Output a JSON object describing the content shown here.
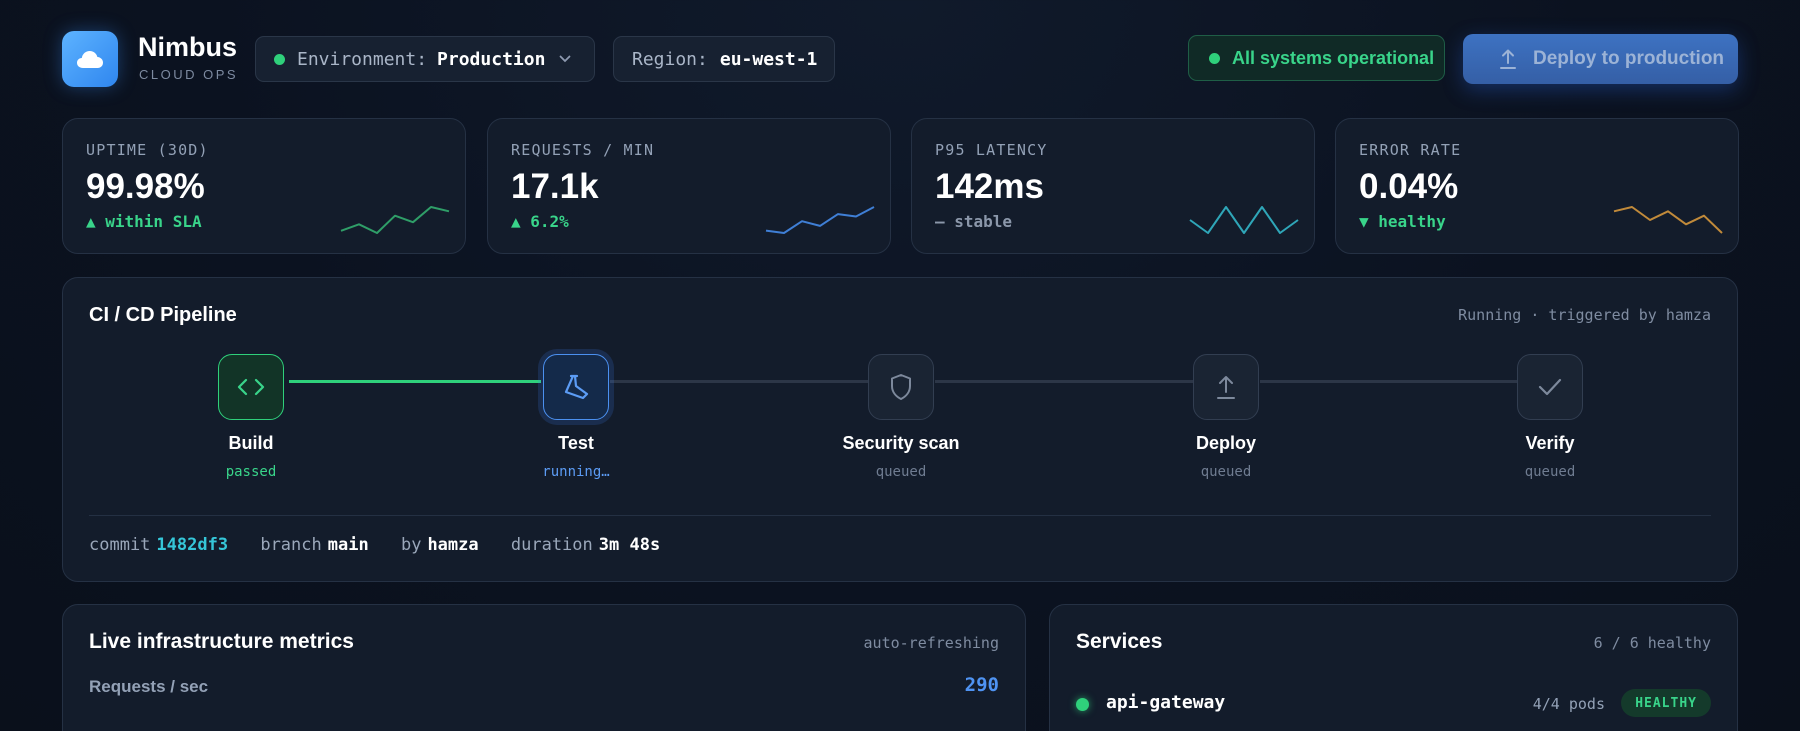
{
  "brand": {
    "name": "Nimbus",
    "subtitle": "CLOUD OPS",
    "logo_icon": "cloud-icon"
  },
  "header": {
    "environment": {
      "label": "Environment:",
      "value": "Production"
    },
    "region": {
      "label": "Region:",
      "value": "eu-west-1"
    },
    "status": {
      "label": "All systems operational",
      "color": "#2fd07b"
    },
    "deploy_button": {
      "label": "Deploy to production",
      "icon": "upload-icon"
    }
  },
  "stats": [
    {
      "label": "UPTIME (30D)",
      "value": "99.98%",
      "delta": "▲ within SLA",
      "delta_color": "#39d48a",
      "spark_color": "#2f9e68",
      "spark": [
        3,
        6,
        2,
        10,
        7,
        14,
        12
      ]
    },
    {
      "label": "REQUESTS / MIN",
      "value": "17.1k",
      "delta": "▲ 6.2%",
      "delta_color": "#39d48a",
      "spark_color": "#3f7fd6",
      "spark": [
        2,
        1,
        6,
        4,
        9,
        8,
        12
      ]
    },
    {
      "label": "P95 LATENCY",
      "value": "142ms",
      "delta": "— stable",
      "delta_color": "#8b97aa",
      "spark_color": "#2fa6b8",
      "spark": [
        6,
        5,
        7,
        5,
        7,
        5,
        6
      ]
    },
    {
      "label": "ERROR RATE",
      "value": "0.04%",
      "delta": "▼ healthy",
      "delta_color": "#39d48a",
      "spark_color": "#c18a3a",
      "spark": [
        9,
        10,
        7,
        9,
        6,
        8,
        4
      ]
    }
  ],
  "pipeline": {
    "title": "CI / CD Pipeline",
    "status": "Running · triggered by hamza",
    "stages": [
      {
        "name": "Build",
        "state": "passed",
        "icon": "code-icon"
      },
      {
        "name": "Test",
        "state": "running…",
        "icon": "flask-icon"
      },
      {
        "name": "Security scan",
        "state": "queued",
        "icon": "shield-icon"
      },
      {
        "name": "Deploy",
        "state": "queued",
        "icon": "upload-icon"
      },
      {
        "name": "Verify",
        "state": "queued",
        "icon": "check-icon"
      }
    ],
    "commit": {
      "commit_label": "commit",
      "commit_value": "1482df3",
      "branch_label": "branch",
      "branch_value": "main",
      "by_label": "by",
      "by_value": "hamza",
      "duration_label": "duration",
      "duration_value": "3m 48s"
    }
  },
  "infra": {
    "title": "Live infrastructure metrics",
    "status": "auto-refreshing",
    "metric_label": "Requests / sec",
    "metric_value": "290"
  },
  "services": {
    "title": "Services",
    "summary": "6 / 6 healthy",
    "items": [
      {
        "name": "api-gateway",
        "pods": "4/4 pods",
        "badge": "HEALTHY"
      }
    ]
  }
}
